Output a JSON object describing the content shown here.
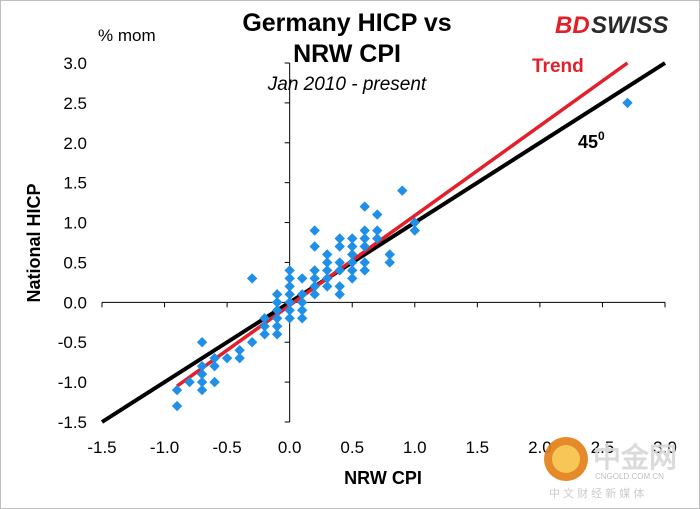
{
  "chart_data": {
    "type": "scatter",
    "title_line1": "Germany HICP vs",
    "title_line2": "NRW CPI",
    "subtitle": "Jan 2010 - present",
    "unit_label": "% mom",
    "xlabel": "NRW  CPI",
    "ylabel": "National HICP",
    "xlim": [
      -1.5,
      3.0
    ],
    "ylim": [
      -1.5,
      3.0
    ],
    "x_ticks": [
      -1.5,
      -1.0,
      -0.5,
      0.0,
      0.5,
      1.0,
      1.5,
      2.0,
      2.5,
      3.0
    ],
    "y_ticks": [
      -1.5,
      -1.0,
      -0.5,
      0.0,
      0.5,
      1.0,
      1.5,
      2.0,
      2.5,
      3.0
    ],
    "x_tick_labels": [
      "-1.5",
      "-1.0",
      "-0.5",
      "0.0",
      "0.5",
      "1.0",
      "1.5",
      "2.0",
      "2.5",
      "3.0"
    ],
    "y_tick_labels": [
      "-1.5",
      "-1.0",
      "-0.5",
      "0.0",
      "0.5",
      "1.0",
      "1.5",
      "2.0",
      "2.5",
      "3.0"
    ],
    "lines": [
      {
        "name": "Trend",
        "color": "#e3202a",
        "x": [
          -0.9,
          2.7
        ],
        "y": [
          -1.05,
          3.0
        ]
      },
      {
        "name": "45",
        "superscript": "0",
        "color": "#000000",
        "x": [
          -1.5,
          3.0
        ],
        "y": [
          -1.5,
          3.0
        ]
      }
    ],
    "point_color": "#1f8fe8",
    "points": [
      {
        "x": -0.9,
        "y": -1.1
      },
      {
        "x": -0.9,
        "y": -1.3
      },
      {
        "x": -0.8,
        "y": -1.0
      },
      {
        "x": -0.7,
        "y": -0.5
      },
      {
        "x": -0.7,
        "y": -0.8
      },
      {
        "x": -0.7,
        "y": -0.9
      },
      {
        "x": -0.7,
        "y": -1.0
      },
      {
        "x": -0.7,
        "y": -1.1
      },
      {
        "x": -0.6,
        "y": -0.7
      },
      {
        "x": -0.6,
        "y": -0.8
      },
      {
        "x": -0.6,
        "y": -1.0
      },
      {
        "x": -0.5,
        "y": -0.7
      },
      {
        "x": -0.4,
        "y": -0.6
      },
      {
        "x": -0.4,
        "y": -0.7
      },
      {
        "x": -0.3,
        "y": 0.3
      },
      {
        "x": -0.3,
        "y": -0.5
      },
      {
        "x": -0.2,
        "y": -0.2
      },
      {
        "x": -0.2,
        "y": -0.3
      },
      {
        "x": -0.2,
        "y": -0.4
      },
      {
        "x": -0.1,
        "y": 0.1
      },
      {
        "x": -0.1,
        "y": 0.0
      },
      {
        "x": -0.1,
        "y": -0.1
      },
      {
        "x": -0.1,
        "y": -0.2
      },
      {
        "x": -0.1,
        "y": -0.3
      },
      {
        "x": -0.1,
        "y": -0.4
      },
      {
        "x": 0.0,
        "y": 0.4
      },
      {
        "x": 0.0,
        "y": 0.3
      },
      {
        "x": 0.0,
        "y": 0.2
      },
      {
        "x": 0.0,
        "y": 0.1
      },
      {
        "x": 0.0,
        "y": 0.0
      },
      {
        "x": 0.0,
        "y": -0.1
      },
      {
        "x": 0.0,
        "y": -0.2
      },
      {
        "x": 0.1,
        "y": 0.3
      },
      {
        "x": 0.1,
        "y": 0.1
      },
      {
        "x": 0.1,
        "y": 0.0
      },
      {
        "x": 0.1,
        "y": -0.1
      },
      {
        "x": 0.1,
        "y": -0.2
      },
      {
        "x": 0.2,
        "y": 0.9
      },
      {
        "x": 0.2,
        "y": 0.7
      },
      {
        "x": 0.2,
        "y": 0.4
      },
      {
        "x": 0.2,
        "y": 0.3
      },
      {
        "x": 0.2,
        "y": 0.2
      },
      {
        "x": 0.2,
        "y": 0.1
      },
      {
        "x": 0.3,
        "y": 0.6
      },
      {
        "x": 0.3,
        "y": 0.5
      },
      {
        "x": 0.3,
        "y": 0.4
      },
      {
        "x": 0.3,
        "y": 0.3
      },
      {
        "x": 0.3,
        "y": 0.2
      },
      {
        "x": 0.4,
        "y": 0.8
      },
      {
        "x": 0.4,
        "y": 0.7
      },
      {
        "x": 0.4,
        "y": 0.5
      },
      {
        "x": 0.4,
        "y": 0.4
      },
      {
        "x": 0.4,
        "y": 0.2
      },
      {
        "x": 0.4,
        "y": 0.1
      },
      {
        "x": 0.5,
        "y": 0.8
      },
      {
        "x": 0.5,
        "y": 0.7
      },
      {
        "x": 0.5,
        "y": 0.6
      },
      {
        "x": 0.5,
        "y": 0.5
      },
      {
        "x": 0.5,
        "y": 0.4
      },
      {
        "x": 0.5,
        "y": 0.3
      },
      {
        "x": 0.6,
        "y": 1.2
      },
      {
        "x": 0.6,
        "y": 0.9
      },
      {
        "x": 0.6,
        "y": 0.8
      },
      {
        "x": 0.6,
        "y": 0.7
      },
      {
        "x": 0.6,
        "y": 0.5
      },
      {
        "x": 0.6,
        "y": 0.4
      },
      {
        "x": 0.7,
        "y": 1.1
      },
      {
        "x": 0.7,
        "y": 0.9
      },
      {
        "x": 0.7,
        "y": 0.8
      },
      {
        "x": 0.8,
        "y": 0.6
      },
      {
        "x": 0.8,
        "y": 0.5
      },
      {
        "x": 0.9,
        "y": 1.4
      },
      {
        "x": 1.0,
        "y": 1.0
      },
      {
        "x": 1.0,
        "y": 0.9
      },
      {
        "x": 2.7,
        "y": 2.5
      }
    ]
  },
  "brand": {
    "logo_bd": "BD",
    "logo_swiss": "SWISS",
    "logo_bd_color": "#e3202a",
    "logo_swiss_color": "#2a2a2a"
  },
  "watermark": {
    "main_text": "中金网",
    "domain_text": "CNGOLD.COM.CN",
    "tagline": "中 文 财 经 新 媒 体"
  }
}
